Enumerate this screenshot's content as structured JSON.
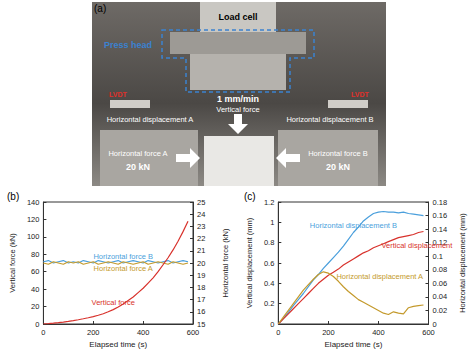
{
  "photo": {
    "label": "(a)",
    "load_cell": "Load cell",
    "press_head": "Press head",
    "rate": "1 mm/min",
    "vertical_force": "Vertical force",
    "horizontal_displacement_a": "Horizontal displacement A",
    "horizontal_displacement_b": "Horizontal displacement B",
    "lvdt_a": "LVDT",
    "lvdt_b": "LVDT",
    "horizontal_force_a": {
      "name": "Horizontal force A",
      "value": "20 kN"
    },
    "horizontal_force_b": {
      "name": "Horizontal force B",
      "value": "20 kN"
    }
  },
  "chart_data": [
    {
      "type": "line",
      "title": "(b)",
      "x_label": "Elapsed time (s)",
      "y_label": "Vertical force (kN)",
      "y2_label": "Horizontal force (kN)",
      "x": [
        0,
        20,
        40,
        60,
        80,
        100,
        120,
        140,
        160,
        180,
        200,
        220,
        240,
        260,
        280,
        300,
        320,
        340,
        360,
        380,
        400,
        420,
        440,
        460,
        480,
        500,
        520,
        540,
        560,
        580
      ],
      "xlim": [
        0,
        600
      ],
      "xticks": [
        0,
        200,
        400,
        600
      ],
      "ylim": [
        0,
        140
      ],
      "yticks": [
        0,
        20,
        40,
        60,
        80,
        100,
        120,
        140
      ],
      "y2lim": [
        15,
        25
      ],
      "y2ticks": [
        15,
        16,
        17,
        18,
        19,
        20,
        21,
        22,
        23,
        24,
        25
      ],
      "grid": false,
      "marker": "none",
      "line_style": "solid",
      "series": [
        {
          "name": "Horizontal force B",
          "color": "#4a9fdc",
          "axis": "y2",
          "values": [
            20.1,
            20.2,
            20.0,
            20.1,
            20.2,
            20.0,
            20.1,
            20.0,
            20.2,
            20.1,
            20.0,
            20.2,
            20.1,
            20.0,
            20.1,
            20.2,
            20.0,
            20.1,
            20.2,
            20.1,
            20.0,
            20.2,
            20.1,
            20.0,
            20.1,
            20.2,
            20.0,
            20.1,
            20.2,
            20.1
          ]
        },
        {
          "name": "Horizontal force A",
          "color": "#c49a2c",
          "axis": "y2",
          "values": [
            20.0,
            19.9,
            20.1,
            20.0,
            19.9,
            20.1,
            20.0,
            20.1,
            19.9,
            20.0,
            20.1,
            19.9,
            20.0,
            20.1,
            20.0,
            19.9,
            20.1,
            20.0,
            19.9,
            20.0,
            20.1,
            19.9,
            20.0,
            20.1,
            20.0,
            19.9,
            20.1,
            20.0,
            19.9,
            20.0
          ]
        },
        {
          "name": "Vertical force",
          "color": "#d8322c",
          "axis": "y",
          "values": [
            0,
            0.4,
            0.9,
            1.5,
            2.2,
            3.0,
            3.9,
            4.9,
            6.0,
            7.2,
            8.5,
            10,
            11.8,
            14,
            16.5,
            19.5,
            23,
            27,
            31,
            36,
            41,
            47,
            53,
            60,
            68,
            76,
            85,
            95,
            106,
            118
          ]
        }
      ]
    },
    {
      "type": "line",
      "title": "(c)",
      "x_label": "Elapsed time (s)",
      "y_label": "Vertical displacement (mm)",
      "y2_label": "Horizontal displacement (mm)",
      "x": [
        0,
        20,
        40,
        60,
        80,
        100,
        120,
        140,
        160,
        180,
        200,
        220,
        240,
        260,
        280,
        300,
        320,
        340,
        360,
        380,
        400,
        420,
        440,
        460,
        480,
        500,
        520,
        540,
        560,
        580
      ],
      "xlim": [
        0,
        600
      ],
      "xticks": [
        0,
        200,
        400,
        600
      ],
      "ylim": [
        0,
        1.2
      ],
      "yticks": [
        0,
        0.2,
        0.4,
        0.6,
        0.8,
        1,
        1.2
      ],
      "y2lim": [
        0,
        0.18
      ],
      "y2ticks": [
        0,
        0.02,
        0.04,
        0.06,
        0.08,
        0.1,
        0.12,
        0.14,
        0.16,
        0.18
      ],
      "grid": false,
      "marker": "none",
      "line_style": "solid",
      "series": [
        {
          "name": "Horizontal displacement B",
          "color": "#4a9fdc",
          "axis": "y2",
          "values": [
            0,
            0.008,
            0.017,
            0.027,
            0.036,
            0.045,
            0.055,
            0.065,
            0.073,
            0.082,
            0.09,
            0.098,
            0.106,
            0.115,
            0.125,
            0.135,
            0.143,
            0.152,
            0.158,
            0.163,
            0.165,
            0.166,
            0.165,
            0.165,
            0.164,
            0.165,
            0.163,
            0.162,
            0.161,
            0.16
          ]
        },
        {
          "name": "Vertical displacement",
          "color": "#d8322c",
          "axis": "y",
          "values": [
            0,
            0.05,
            0.1,
            0.15,
            0.2,
            0.25,
            0.3,
            0.35,
            0.4,
            0.44,
            0.48,
            0.51,
            0.54,
            0.58,
            0.61,
            0.64,
            0.67,
            0.7,
            0.72,
            0.75,
            0.77,
            0.79,
            0.81,
            0.83,
            0.85,
            0.86,
            0.87,
            0.88,
            0.9,
            0.91
          ]
        },
        {
          "name": "Horizontal displacement A",
          "color": "#c49a2c",
          "axis": "y2",
          "values": [
            0,
            0.01,
            0.02,
            0.03,
            0.04,
            0.05,
            0.058,
            0.066,
            0.073,
            0.077,
            0.075,
            0.07,
            0.063,
            0.055,
            0.048,
            0.042,
            0.036,
            0.032,
            0.028,
            0.024,
            0.02,
            0.016,
            0.014,
            0.018,
            0.016,
            0.015,
            0.024,
            0.026,
            0.027,
            0.028
          ]
        }
      ]
    }
  ]
}
